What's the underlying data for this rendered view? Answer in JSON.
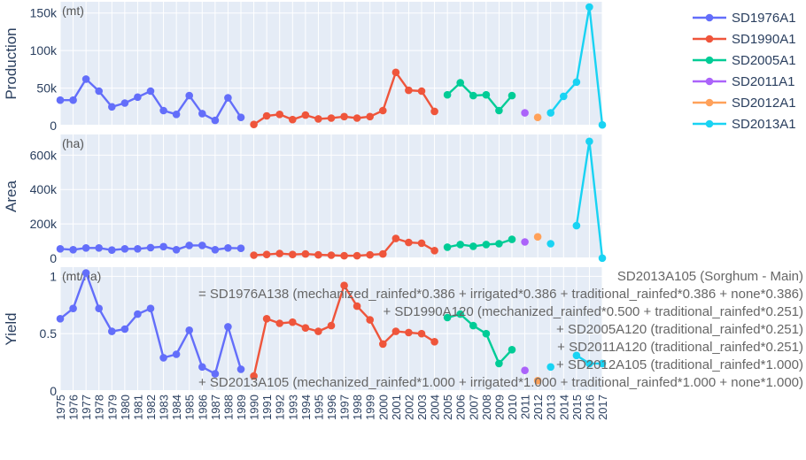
{
  "chart_data": {
    "type": "line",
    "legend_placement": "top-right",
    "x": [
      1975,
      1976,
      1977,
      1978,
      1979,
      1980,
      1981,
      1982,
      1983,
      1984,
      1985,
      1986,
      1987,
      1988,
      1989,
      1990,
      1991,
      1992,
      1993,
      1994,
      1995,
      1996,
      1997,
      1998,
      1999,
      2000,
      2001,
      2002,
      2003,
      2004,
      2005,
      2006,
      2007,
      2008,
      2009,
      2010,
      2011,
      2012,
      2013,
      2014,
      2015,
      2016,
      2017
    ],
    "x_tick_labels": [
      "1975",
      "1976",
      "1977",
      "1978",
      "1979",
      "1980",
      "1981",
      "1982",
      "1983",
      "1984",
      "1985",
      "1986",
      "1987",
      "1988",
      "1989",
      "1990",
      "1991",
      "1992",
      "1993",
      "1994",
      "1995",
      "1996",
      "1997",
      "1998",
      "1999",
      "2000",
      "2001",
      "2002",
      "2003",
      "2004",
      "2005",
      "2006",
      "2007",
      "2008",
      "2009",
      "2010",
      "2011",
      "2012",
      "2013",
      "2014",
      "2015",
      "2016",
      "2017"
    ],
    "series_colors": {
      "SD1976A1": "#636efa",
      "SD1990A1": "#ef553b",
      "SD2005A1": "#00cc96",
      "SD2011A1": "#ab63fa",
      "SD2012A1": "#ffa15a",
      "SD2013A1": "#19d3f3"
    },
    "legend": [
      "SD1976A1",
      "SD1990A1",
      "SD2005A1",
      "SD2011A1",
      "SD2012A1",
      "SD2013A1"
    ],
    "panels": [
      {
        "ylabel": "Production",
        "unit": "(mt)",
        "ylim": [
          0,
          165000
        ],
        "yticks": [
          0,
          50000,
          100000,
          150000
        ],
        "ytick_labels": [
          "0",
          "50k",
          "100k",
          "150k"
        ],
        "series": [
          {
            "name": "SD1976A1",
            "x": [
              1975,
              1976,
              1977,
              1978,
              1979,
              1980,
              1981,
              1982,
              1983,
              1984,
              1985,
              1986,
              1987,
              1988,
              1989
            ],
            "y": [
              34000,
              34000,
              62000,
              46000,
              25000,
              30000,
              38000,
              46000,
              20000,
              15000,
              40000,
              16000,
              7000,
              37000,
              11000
            ]
          },
          {
            "name": "SD1990A1",
            "x": [
              1990,
              1991,
              1992,
              1993,
              1994,
              1995,
              1996,
              1997,
              1998,
              1999,
              2000,
              2001,
              2002,
              2003,
              2004
            ],
            "y": [
              1500,
              13000,
              15000,
              8000,
              14000,
              9000,
              10000,
              12000,
              10000,
              12000,
              20000,
              71000,
              47000,
              46000,
              19000
            ]
          },
          {
            "name": "SD2005A1",
            "x": [
              2005,
              2006,
              2007,
              2008,
              2009,
              2010
            ],
            "y": [
              41000,
              57000,
              40000,
              41000,
              20000,
              40000
            ]
          },
          {
            "name": "SD2011A1",
            "x": [
              2011
            ],
            "y": [
              17000
            ]
          },
          {
            "name": "SD2012A1",
            "x": [
              2012
            ],
            "y": [
              11000
            ]
          },
          {
            "name": "SD2013A1",
            "x": [
              2013,
              2014,
              2015,
              2016,
              2017
            ],
            "y": [
              17000,
              39000,
              58000,
              158000,
              1000
            ]
          }
        ]
      },
      {
        "ylabel": "Area",
        "unit": "(ha)",
        "ylim": [
          0,
          720000
        ],
        "yticks": [
          0,
          200000,
          400000,
          600000
        ],
        "ytick_labels": [
          "0",
          "200k",
          "400k",
          "600k"
        ],
        "series": [
          {
            "name": "SD1976A1",
            "x": [
              1975,
              1976,
              1977,
              1978,
              1979,
              1980,
              1981,
              1982,
              1983,
              1984,
              1985,
              1986,
              1987,
              1988,
              1989
            ],
            "y": [
              55000,
              50000,
              60000,
              60000,
              48000,
              55000,
              55000,
              62000,
              68000,
              50000,
              75000,
              75000,
              50000,
              60000,
              58000
            ]
          },
          {
            "name": "SD1990A1",
            "x": [
              1990,
              1991,
              1992,
              1993,
              1994,
              1995,
              1996,
              1997,
              1998,
              1999,
              2000,
              2001,
              2002,
              2003,
              2004
            ],
            "y": [
              18000,
              22000,
              28000,
              22000,
              25000,
              20000,
              18000,
              15000,
              15000,
              20000,
              25000,
              115000,
              92000,
              88000,
              45000
            ]
          },
          {
            "name": "SD2005A1",
            "x": [
              2005,
              2006,
              2007,
              2008,
              2009,
              2010
            ],
            "y": [
              65000,
              80000,
              70000,
              80000,
              85000,
              110000
            ]
          },
          {
            "name": "SD2011A1",
            "x": [
              2011
            ],
            "y": [
              95000
            ]
          },
          {
            "name": "SD2012A1",
            "x": [
              2012
            ],
            "y": [
              125000
            ]
          },
          {
            "name": "SD2013A1",
            "x": [
              2013,
              2014,
              2015,
              2016,
              2017
            ],
            "y": [
              85000,
              null,
              190000,
              680000,
              1000
            ]
          }
        ]
      },
      {
        "ylabel": "Yield",
        "unit": "(mt/ha)",
        "ylim": [
          0,
          1.08
        ],
        "yticks": [
          0,
          0.5,
          1
        ],
        "ytick_labels": [
          "0",
          "0.5",
          "1"
        ],
        "series": [
          {
            "name": "SD1976A1",
            "x": [
              1975,
              1976,
              1977,
              1978,
              1979,
              1980,
              1981,
              1982,
              1983,
              1984,
              1985,
              1986,
              1987,
              1988,
              1989
            ],
            "y": [
              0.63,
              0.72,
              1.03,
              0.72,
              0.52,
              0.54,
              0.67,
              0.72,
              0.29,
              0.32,
              0.53,
              0.21,
              0.15,
              0.56,
              0.19
            ]
          },
          {
            "name": "SD1990A1",
            "x": [
              1990,
              1991,
              1992,
              1993,
              1994,
              1995,
              1996,
              1997,
              1998,
              1999,
              2000,
              2001,
              2002,
              2003,
              2004
            ],
            "y": [
              0.13,
              0.63,
              0.59,
              0.6,
              0.55,
              0.52,
              0.57,
              0.92,
              0.74,
              0.62,
              0.41,
              0.52,
              0.51,
              0.5,
              0.43
            ]
          },
          {
            "name": "SD2005A1",
            "x": [
              2005,
              2006,
              2007,
              2008,
              2009,
              2010
            ],
            "y": [
              0.64,
              0.67,
              0.57,
              0.5,
              0.24,
              0.36
            ]
          },
          {
            "name": "SD2011A1",
            "x": [
              2011
            ],
            "y": [
              0.18
            ]
          },
          {
            "name": "SD2012A1",
            "x": [
              2012
            ],
            "y": [
              0.09
            ]
          },
          {
            "name": "SD2013A1",
            "x": [
              2013,
              2014,
              2015,
              2016,
              2017
            ],
            "y": [
              0.21,
              null,
              0.31,
              0.24,
              0.24
            ]
          }
        ]
      }
    ],
    "annotation": [
      "SD2013A105 (Sorghum - Main)",
      "= SD1976A138 (mechanized_rainfed*0.386 + irrigated*0.386 + traditional_rainfed*0.386 + none*0.386)",
      "+ SD1990A120 (mechanized_rainfed*0.500 + traditional_rainfed*0.251)",
      "+ SD2005A120 (traditional_rainfed*0.251)",
      "+ SD2011A120 (traditional_rainfed*0.251)",
      "+ SD2012A105 (traditional_rainfed*1.000)",
      "+ SD2013A105 (mechanized_rainfed*1.000 + irrigated*1.000 + traditional_rainfed*1.000 + none*1.000)"
    ]
  }
}
